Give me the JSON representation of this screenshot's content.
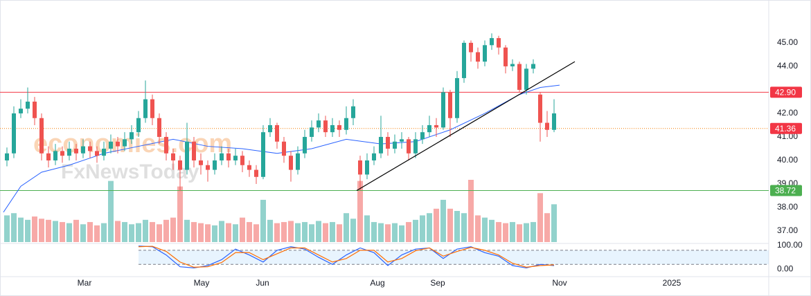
{
  "chart_data": [
    {
      "type": "candlestick",
      "watermarks": [
        "economies.com",
        "FxNewsToday"
      ],
      "x": [
        0,
        1,
        2,
        3,
        4,
        5,
        6,
        7,
        8,
        9,
        10,
        11,
        12,
        13,
        14,
        15,
        16,
        17,
        18,
        19,
        20,
        21,
        22,
        23,
        24,
        25,
        26,
        27,
        28,
        29,
        30,
        31,
        32,
        33,
        34,
        35,
        36,
        37,
        38,
        39,
        40,
        41,
        42,
        43,
        44,
        45,
        46,
        47,
        48,
        49,
        50,
        51,
        52,
        53,
        54,
        55,
        56,
        57,
        58,
        59,
        60,
        61,
        62,
        63,
        64,
        65,
        66,
        67,
        68,
        69,
        70,
        71,
        72,
        73,
        74,
        75,
        76,
        77,
        78,
        79
      ],
      "open": [
        40.0,
        40.3,
        42.0,
        42.2,
        42.5,
        41.8,
        40.3,
        40.0,
        40.4,
        40.2,
        40.5,
        40.3,
        40.6,
        40.4,
        40.2,
        40.5,
        40.8,
        40.6,
        40.9,
        41.2,
        41.8,
        42.6,
        41.8,
        41.0,
        40.3,
        40.0,
        39.6,
        40.8,
        40.0,
        39.8,
        39.6,
        40.0,
        40.3,
        40.0,
        40.2,
        39.8,
        39.6,
        39.3,
        41.2,
        41.5,
        40.8,
        40.2,
        39.6,
        40.3,
        41.0,
        41.4,
        41.7,
        41.2,
        41.5,
        41.3,
        41.8,
        40.0,
        39.4,
        40.0,
        40.3,
        41.0,
        40.5,
        40.8,
        40.9,
        40.3,
        40.9,
        41.2,
        41.5,
        41.4,
        42.9,
        41.8,
        43.5,
        45.0,
        44.6,
        44.2,
        44.9,
        45.2,
        44.8,
        44.0,
        44.1,
        43.0,
        43.9,
        42.8,
        41.6,
        41.3
      ],
      "high": [
        40.55,
        42.3,
        42.6,
        43.1,
        42.7,
        42.0,
        40.6,
        40.7,
        40.6,
        40.8,
        40.7,
        40.9,
        40.8,
        40.6,
        40.8,
        41.1,
        41.0,
        41.2,
        41.5,
        42.1,
        43.4,
        42.8,
        42.0,
        41.2,
        40.5,
        40.2,
        41.6,
        41.0,
        40.3,
        40.0,
        40.3,
        40.6,
        40.5,
        40.5,
        40.4,
        40.0,
        39.8,
        41.5,
        41.8,
        41.6,
        41.0,
        40.4,
        40.6,
        41.3,
        41.7,
        42.0,
        41.9,
        41.8,
        41.7,
        42.3,
        42.6,
        40.2,
        40.3,
        40.6,
        41.9,
        41.2,
        41.1,
        41.2,
        41.0,
        41.2,
        41.5,
        41.9,
        41.8,
        43.1,
        43.0,
        43.8,
        45.1,
        45.1,
        44.8,
        45.1,
        45.4,
        45.3,
        44.9,
        44.3,
        44.2,
        44.1,
        44.3,
        42.9,
        42.1,
        42.6
      ],
      "low": [
        39.75,
        40.1,
        41.8,
        42.0,
        41.5,
        40.0,
        39.7,
        39.8,
        39.9,
        40.0,
        40.0,
        40.1,
        40.1,
        39.9,
        40.0,
        40.3,
        40.3,
        40.4,
        40.7,
        41.0,
        41.6,
        41.5,
        40.7,
        40.0,
        39.6,
        38.7,
        39.4,
        39.7,
        39.4,
        39.1,
        39.4,
        39.8,
        39.7,
        39.8,
        39.5,
        39.3,
        39.0,
        39.2,
        41.0,
        40.5,
        39.9,
        39.1,
        39.4,
        40.1,
        40.8,
        41.2,
        41.0,
        41.0,
        41.0,
        41.1,
        41.5,
        38.72,
        39.2,
        39.8,
        40.1,
        40.2,
        40.3,
        40.5,
        40.0,
        40.1,
        40.7,
        41.0,
        41.0,
        41.3,
        41.0,
        41.6,
        43.3,
        44.2,
        43.9,
        44.0,
        44.7,
        44.5,
        43.7,
        43.8,
        42.9,
        42.8,
        43.7,
        40.8,
        41.0,
        41.2
      ],
      "close": [
        40.3,
        42.0,
        42.2,
        42.5,
        41.8,
        40.3,
        40.0,
        40.4,
        40.2,
        40.5,
        40.3,
        40.6,
        40.4,
        40.2,
        40.5,
        40.8,
        40.6,
        40.9,
        41.2,
        41.8,
        42.6,
        41.8,
        41.0,
        40.3,
        40.0,
        39.6,
        40.8,
        40.0,
        39.8,
        39.6,
        40.0,
        40.3,
        40.0,
        40.2,
        39.8,
        39.6,
        39.3,
        41.2,
        41.5,
        40.8,
        40.2,
        39.6,
        40.3,
        41.0,
        41.4,
        41.7,
        41.2,
        41.5,
        41.3,
        41.8,
        42.3,
        39.4,
        40.0,
        40.3,
        41.0,
        40.5,
        40.8,
        40.9,
        40.3,
        40.9,
        41.2,
        41.5,
        41.4,
        42.9,
        41.8,
        43.5,
        45.0,
        44.6,
        44.2,
        44.9,
        45.2,
        44.8,
        44.0,
        44.1,
        43.0,
        43.9,
        44.1,
        41.6,
        41.3,
        42.0
      ],
      "volume": [
        2.4,
        2.6,
        2.2,
        2.0,
        2.3,
        2.1,
        2.0,
        1.9,
        1.8,
        1.7,
        2.0,
        1.6,
        1.8,
        1.5,
        1.7,
        5.5,
        1.9,
        1.8,
        1.6,
        1.7,
        2.0,
        1.8,
        1.6,
        2.0,
        2.2,
        5.0,
        2.0,
        1.8,
        1.7,
        1.6,
        1.5,
        1.9,
        1.7,
        1.6,
        2.2,
        1.8,
        1.6,
        3.8,
        2.0,
        1.7,
        1.8,
        1.9,
        1.7,
        1.8,
        1.6,
        1.9,
        1.7,
        1.8,
        1.6,
        2.6,
        2.1,
        5.5,
        2.4,
        1.8,
        1.7,
        1.6,
        1.7,
        1.5,
        1.8,
        2.0,
        2.4,
        2.6,
        3.0,
        3.8,
        3.0,
        2.8,
        2.6,
        5.6,
        2.4,
        2.2,
        2.0,
        1.8,
        1.7,
        1.8,
        1.6,
        1.7,
        1.8,
        4.4,
        2.6,
        3.4
      ],
      "up_color": "#26a69a",
      "down_color": "#ef5350",
      "moving_average": {
        "color": "#2962ff",
        "x": [
          -0.5,
          2,
          5,
          9,
          14,
          19,
          24,
          29,
          34,
          39,
          44,
          49,
          54,
          59,
          64,
          69,
          74,
          77,
          79.8
        ],
        "values": [
          37.8,
          38.9,
          39.5,
          39.8,
          40.3,
          40.6,
          40.9,
          40.6,
          40.5,
          40.3,
          40.5,
          40.9,
          40.7,
          40.8,
          41.3,
          42.0,
          42.8,
          43.1,
          43.2
        ]
      },
      "trendline": {
        "color": "#000000",
        "x": [
          50.5,
          82
        ],
        "y": [
          38.72,
          44.2
        ]
      },
      "levels": [
        {
          "value": 42.9,
          "label": "42.90",
          "color": "#f23645",
          "style": "solid"
        },
        {
          "value": 41.36,
          "label": "41.36",
          "color": "#f23645",
          "style": "dotted"
        },
        {
          "value": 38.72,
          "label": "38.72",
          "color": "#4caf50",
          "style": "solid"
        }
      ],
      "xlim": [
        -1,
        110
      ],
      "xticks": [
        {
          "value": 11.2,
          "label": "Mar"
        },
        {
          "value": 28.1,
          "label": "May"
        },
        {
          "value": 36.9,
          "label": "Jun"
        },
        {
          "value": 53.5,
          "label": "Aug"
        },
        {
          "value": 62.2,
          "label": "Sep"
        },
        {
          "value": 79.8,
          "label": "Nov"
        },
        {
          "value": 96,
          "label": "2025"
        }
      ],
      "ylim": [
        36.53,
        46.82
      ],
      "yticks": [
        {
          "value": 37,
          "label": "37.00"
        },
        {
          "value": 38,
          "label": "38.00"
        },
        {
          "value": 39,
          "label": "39.00"
        },
        {
          "value": 40,
          "label": "40.00"
        },
        {
          "value": 41,
          "label": "41.00"
        },
        {
          "value": 42,
          "label": "42.00"
        },
        {
          "value": 44,
          "label": "44.00"
        },
        {
          "value": 45,
          "label": "45.00"
        }
      ],
      "grid": false
    },
    {
      "type": "line",
      "x": [
        19,
        21,
        23,
        25,
        27,
        29,
        31,
        33,
        35,
        37,
        39,
        41,
        43,
        45,
        47,
        49,
        51,
        53,
        55,
        57,
        59,
        61,
        63,
        65,
        67,
        69,
        71,
        73,
        75,
        77,
        79
      ],
      "series": [
        {
          "color": "#2962ff",
          "values": [
            98,
            95,
            60,
            10,
            5,
            15,
            40,
            85,
            60,
            30,
            80,
            95,
            85,
            50,
            20,
            60,
            90,
            70,
            15,
            60,
            85,
            90,
            45,
            85,
            95,
            70,
            55,
            15,
            5,
            20,
            15
          ]
        },
        {
          "color": "#ff6d00",
          "values": [
            95,
            97,
            75,
            30,
            8,
            10,
            28,
            70,
            70,
            40,
            65,
            90,
            90,
            60,
            30,
            45,
            80,
            80,
            30,
            45,
            78,
            90,
            55,
            75,
            92,
            80,
            60,
            25,
            8,
            15,
            18
          ]
        }
      ],
      "bands": [
        20,
        80
      ],
      "ylim": [
        -32,
        109
      ],
      "yticks": [
        {
          "value": 0,
          "label": "0.00"
        },
        {
          "value": 100,
          "label": "100.00"
        }
      ]
    }
  ]
}
